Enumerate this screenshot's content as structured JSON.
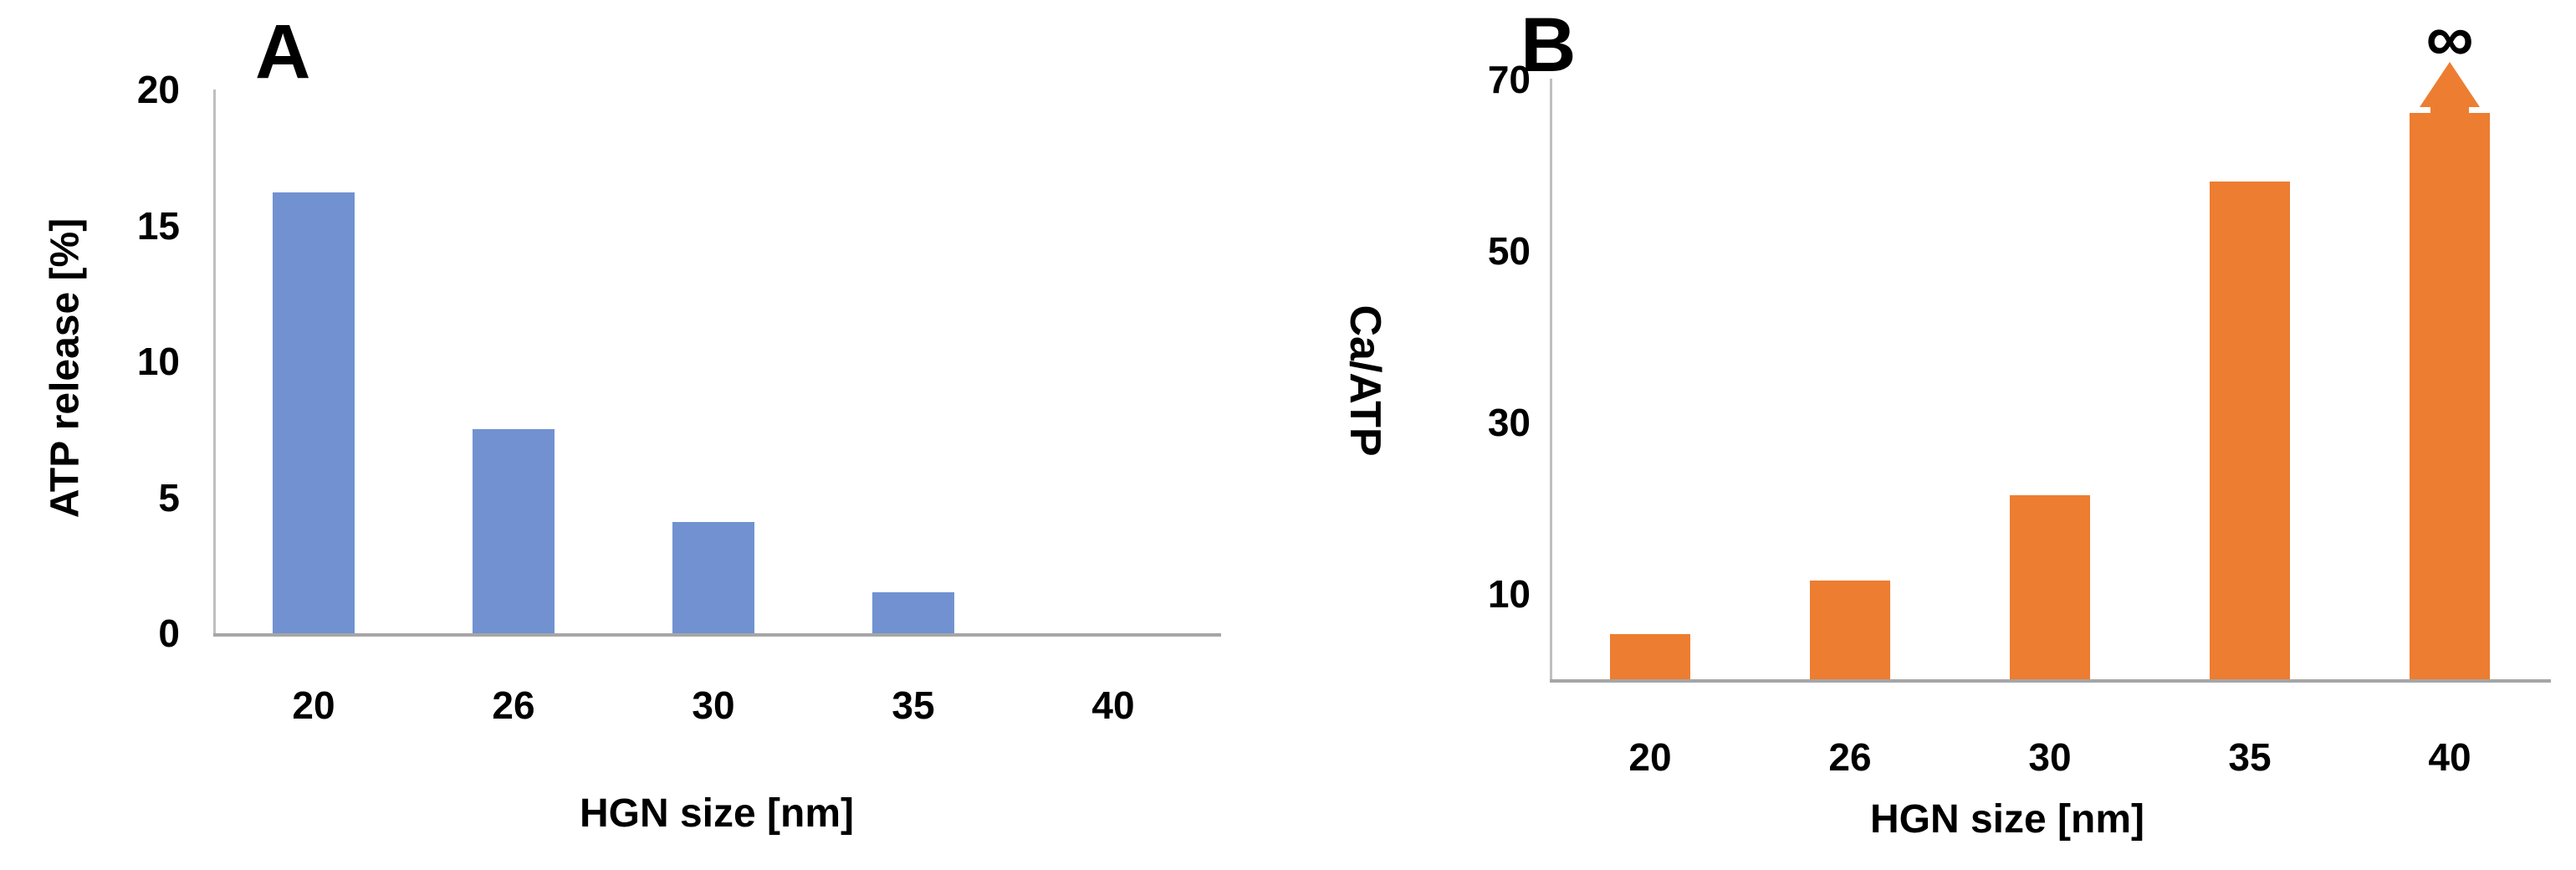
{
  "figure": {
    "description": "Two-panel bar figure comparing HGN (hollow gold nanoparticle) size effects",
    "x_categories": [
      "20",
      "26",
      "30",
      "35",
      "40"
    ]
  },
  "chart_data": [
    {
      "type": "bar",
      "panel_label": "A",
      "categories": [
        "20",
        "26",
        "30",
        "35",
        "40"
      ],
      "values": [
        16.2,
        7.5,
        4.1,
        1.5,
        0
      ],
      "xlabel": "HGN size [nm]",
      "ylabel": "ATP release [%]",
      "ylim": [
        0,
        20
      ],
      "yticks": [
        "0",
        "5",
        "10",
        "15",
        "20"
      ],
      "ytick_values": [
        0,
        5,
        10,
        15,
        20
      ],
      "bar_color": "#7191D1",
      "grid": false,
      "legend": "none"
    },
    {
      "type": "bar",
      "panel_label": "B",
      "categories": [
        "20",
        "26",
        "30",
        "35",
        "40"
      ],
      "values": [
        5.3,
        11.5,
        21.5,
        58,
        66
      ],
      "xlabel": "HGN size [nm]",
      "ylabel": "Ca/ATP",
      "ylim": [
        0,
        70
      ],
      "yticks": [
        "10",
        "30",
        "50",
        "70"
      ],
      "ytick_values": [
        10,
        30,
        50,
        70
      ],
      "bar_color": "#ED7D31",
      "grid": false,
      "legend": "none",
      "annotations": [
        {
          "text": "∞",
          "type": "infinity-arrow",
          "category": "40",
          "bar_index": 4,
          "note": "orange up-arrow on top of 40 nm bar capped with black infinity symbol (value goes to infinity)"
        }
      ]
    }
  ],
  "colors": {
    "panel_a_bar": "#7191D1",
    "panel_b_bar": "#ED7D31",
    "axis_line": "#BFBFBF",
    "baseline": "#A6A6A6",
    "text": "#000000",
    "background": "#FFFFFF"
  }
}
